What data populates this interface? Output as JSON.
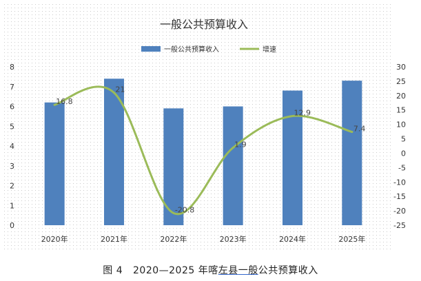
{
  "caption": {
    "prefix": "图 4",
    "range": "2020—2025 年",
    "place_a": "喀",
    "place_b": "左县",
    "place_c": "一般",
    "suffix": "公共预算收入"
  },
  "chart_data": {
    "type": "bar",
    "title": "一般公共预算收入",
    "categories": [
      "2020年",
      "2021年",
      "2022年",
      "2023年",
      "2024年",
      "2025年"
    ],
    "series": [
      {
        "name": "一般公共预算收入",
        "type": "bar",
        "axis": "left",
        "color": "#4f81bd",
        "values": [
          6.2,
          7.4,
          5.9,
          6.0,
          6.8,
          7.3
        ]
      },
      {
        "name": "增速",
        "type": "line",
        "axis": "right",
        "color": "#9bbb59",
        "values": [
          16.8,
          21,
          -20.8,
          1.9,
          12.9,
          7.4
        ],
        "labels": [
          "16.8",
          "21",
          "-20.8",
          "1.9",
          "12.9",
          "7.4"
        ]
      }
    ],
    "y_left": {
      "min": 0,
      "max": 8,
      "ticks": [
        "0",
        "1",
        "2",
        "3",
        "4",
        "5",
        "6",
        "7",
        "8"
      ]
    },
    "y_right": {
      "min": -25,
      "max": 30,
      "ticks": [
        "-25",
        "-20",
        "-15",
        "-10",
        "-5",
        "0",
        "5",
        "10",
        "15",
        "20",
        "25",
        "30"
      ]
    },
    "legend_position": "top-center",
    "grid": false,
    "background": "dotted"
  }
}
